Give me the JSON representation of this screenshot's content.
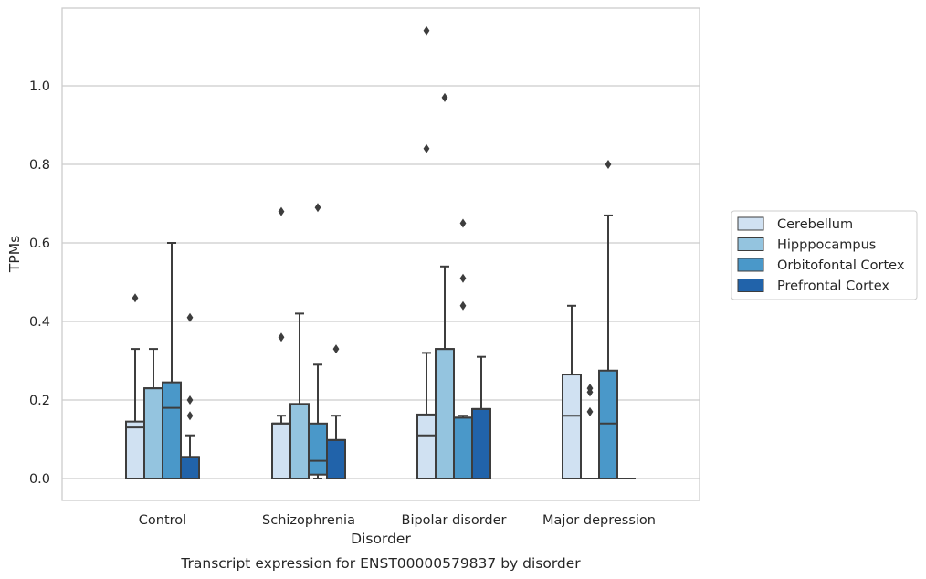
{
  "chart_data": {
    "type": "box",
    "xlabel": "Disorder",
    "ylabel": "TPMs",
    "caption": "Transcript expression for ENST00000579837 by disorder",
    "categories": [
      "Control",
      "Schizophrenia",
      "Bipolar disorder",
      "Major depression"
    ],
    "ylim": [
      -0.055,
      1.2
    ],
    "yticks": [
      0.0,
      0.2,
      0.4,
      0.6,
      0.8,
      1.0
    ],
    "ytick_labels": [
      "0.0",
      "0.2",
      "0.4",
      "0.6",
      "0.8",
      "1.0"
    ],
    "grid": "horizontal",
    "legend_position": "right",
    "series": [
      {
        "name": "Cerebellum",
        "color": "#d0e1f2",
        "boxes": [
          {
            "whislo": 0.0,
            "q1": 0.0,
            "med": 0.13,
            "q3": 0.145,
            "whishi": 0.33,
            "fliers": [
              0.46
            ]
          },
          {
            "whislo": 0.0,
            "q1": 0.0,
            "med": 0.14,
            "q3": 0.14,
            "whishi": 0.16,
            "fliers": [
              0.36,
              0.68
            ]
          },
          {
            "whislo": 0.0,
            "q1": 0.0,
            "med": 0.11,
            "q3": 0.163,
            "whishi": 0.32,
            "fliers": [
              0.84,
              1.14
            ]
          },
          {
            "whislo": 0.0,
            "q1": 0.0,
            "med": 0.16,
            "q3": 0.265,
            "whishi": 0.44,
            "fliers": []
          }
        ]
      },
      {
        "name": "Hipppocampus",
        "color": "#94c4df",
        "boxes": [
          {
            "whislo": 0.0,
            "q1": 0.0,
            "med": 0.23,
            "q3": 0.23,
            "whishi": 0.33,
            "fliers": []
          },
          {
            "whislo": 0.0,
            "q1": 0.0,
            "med": 0.0,
            "q3": 0.19,
            "whishi": 0.42,
            "fliers": []
          },
          {
            "whislo": 0.0,
            "q1": 0.0,
            "med": 0.33,
            "q3": 0.33,
            "whishi": 0.54,
            "fliers": [
              0.97
            ]
          },
          {
            "whislo": 0.0,
            "q1": 0.0,
            "med": 0.0,
            "q3": 0.0,
            "whishi": 0.0,
            "fliers": [
              0.17,
              0.22,
              0.23
            ]
          }
        ]
      },
      {
        "name": "Orbitofontal Cortex",
        "color": "#4a98c9",
        "boxes": [
          {
            "whislo": 0.0,
            "q1": 0.0,
            "med": 0.18,
            "q3": 0.245,
            "whishi": 0.6,
            "fliers": []
          },
          {
            "whislo": 0.0,
            "q1": 0.01,
            "med": 0.045,
            "q3": 0.14,
            "whishi": 0.29,
            "fliers": [
              0.69
            ]
          },
          {
            "whislo": 0.0,
            "q1": 0.0,
            "med": 0.155,
            "q3": 0.155,
            "whishi": 0.16,
            "fliers": [
              0.44,
              0.51,
              0.65
            ]
          },
          {
            "whislo": 0.0,
            "q1": 0.0,
            "med": 0.14,
            "q3": 0.275,
            "whishi": 0.67,
            "fliers": [
              0.8
            ]
          }
        ]
      },
      {
        "name": "Prefrontal Cortex",
        "color": "#2163aa",
        "boxes": [
          {
            "whislo": 0.0,
            "q1": 0.0,
            "med": 0.055,
            "q3": 0.055,
            "whishi": 0.11,
            "fliers": [
              0.16,
              0.2,
              0.41
            ]
          },
          {
            "whislo": 0.0,
            "q1": 0.0,
            "med": 0.098,
            "q3": 0.098,
            "whishi": 0.16,
            "fliers": [
              0.33
            ]
          },
          {
            "whislo": 0.0,
            "q1": 0.0,
            "med": 0.177,
            "q3": 0.177,
            "whishi": 0.31,
            "fliers": []
          },
          {
            "whislo": 0.0,
            "q1": 0.0,
            "med": 0.0,
            "q3": 0.0,
            "whishi": 0.0,
            "fliers": []
          }
        ]
      }
    ]
  }
}
